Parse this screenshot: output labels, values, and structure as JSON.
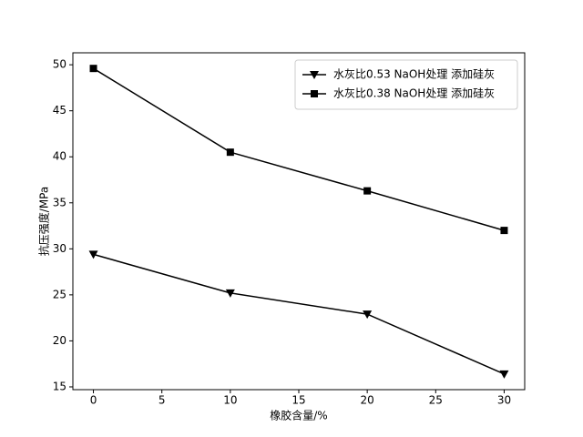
{
  "chart_data": {
    "type": "line",
    "x_label": "橡胶含量/%",
    "y_label": "抗压强度/MPa",
    "x": [
      0,
      10,
      20,
      30
    ],
    "series": [
      {
        "name": "水灰比0.53 NaOH处理 添加硅灰",
        "color": "#000000",
        "marker": "triangle-down",
        "values": [
          29.4,
          25.2,
          22.9,
          16.4
        ]
      },
      {
        "name": "水灰比0.38 NaOH处理 添加硅灰",
        "color": "#000000",
        "marker": "square",
        "values": [
          49.6,
          40.5,
          36.3,
          32.0
        ]
      }
    ],
    "xlim": [
      -1.5,
      31.5
    ],
    "xticks": [
      0,
      5,
      10,
      15,
      20,
      25,
      30
    ],
    "ylim": [
      14.7,
      51.3
    ],
    "yticks": [
      15,
      20,
      25,
      30,
      35,
      40,
      45,
      50
    ],
    "legend": "upper right",
    "grid": false
  }
}
